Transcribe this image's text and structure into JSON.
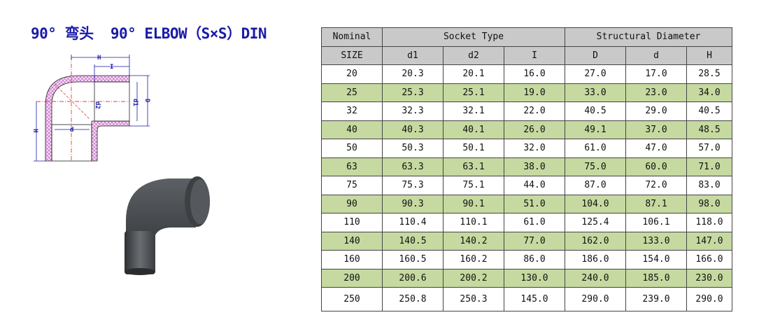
{
  "title": "90° 弯头  90° ELBOW（S×S）DIN",
  "drawing": {
    "labels": {
      "H_top": "H",
      "I": "I",
      "d2": "d2",
      "d1": "d1",
      "D": "D",
      "d": "d",
      "H_left": "H"
    }
  },
  "colors": {
    "title": "#1a1aa8",
    "header_bg": "#c9c9c9",
    "alt_row_bg": "#c6d9a0",
    "pipe": "#4a4d50"
  },
  "table": {
    "group_headers": [
      "Nominal",
      "Socket Type",
      "Structural Diameter"
    ],
    "columns": [
      "SIZE",
      "d1",
      "d2",
      "I",
      "D",
      "d",
      "H"
    ],
    "rows": [
      [
        "20",
        "20.3",
        "20.1",
        "16.0",
        "27.0",
        "17.0",
        "28.5"
      ],
      [
        "25",
        "25.3",
        "25.1",
        "19.0",
        "33.0",
        "23.0",
        "34.0"
      ],
      [
        "32",
        "32.3",
        "32.1",
        "22.0",
        "40.5",
        "29.0",
        "40.5"
      ],
      [
        "40",
        "40.3",
        "40.1",
        "26.0",
        "49.1",
        "37.0",
        "48.5"
      ],
      [
        "50",
        "50.3",
        "50.1",
        "32.0",
        "61.0",
        "47.0",
        "57.0"
      ],
      [
        "63",
        "63.3",
        "63.1",
        "38.0",
        "75.0",
        "60.0",
        "71.0"
      ],
      [
        "75",
        "75.3",
        "75.1",
        "44.0",
        "87.0",
        "72.0",
        "83.0"
      ],
      [
        "90",
        "90.3",
        "90.1",
        "51.0",
        "104.0",
        "87.1",
        "98.0"
      ],
      [
        "110",
        "110.4",
        "110.1",
        "61.0",
        "125.4",
        "106.1",
        "118.0"
      ],
      [
        "140",
        "140.5",
        "140.2",
        "77.0",
        "162.0",
        "133.0",
        "147.0"
      ],
      [
        "160",
        "160.5",
        "160.2",
        "86.0",
        "186.0",
        "154.0",
        "166.0"
      ],
      [
        "200",
        "200.6",
        "200.2",
        "130.0",
        "240.0",
        "185.0",
        "230.0"
      ],
      [
        "250",
        "250.8",
        "250.3",
        "145.0",
        "290.0",
        "239.0",
        "290.0"
      ]
    ]
  }
}
